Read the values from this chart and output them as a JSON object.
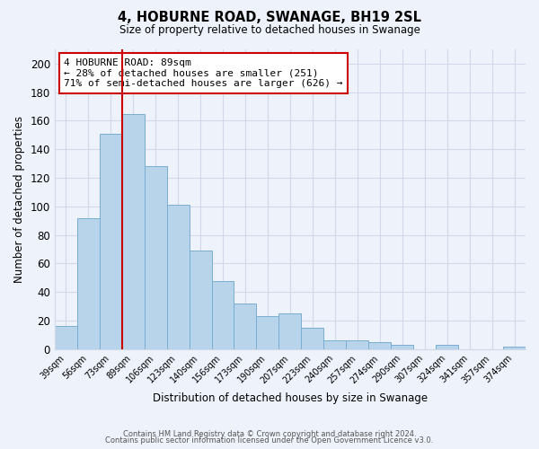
{
  "title": "4, HOBURNE ROAD, SWANAGE, BH19 2SL",
  "subtitle": "Size of property relative to detached houses in Swanage",
  "xlabel": "Distribution of detached houses by size in Swanage",
  "ylabel": "Number of detached properties",
  "categories": [
    "39sqm",
    "56sqm",
    "73sqm",
    "89sqm",
    "106sqm",
    "123sqm",
    "140sqm",
    "156sqm",
    "173sqm",
    "190sqm",
    "207sqm",
    "223sqm",
    "240sqm",
    "257sqm",
    "274sqm",
    "290sqm",
    "307sqm",
    "324sqm",
    "341sqm",
    "357sqm",
    "374sqm"
  ],
  "values": [
    16,
    92,
    151,
    165,
    128,
    101,
    69,
    48,
    32,
    23,
    25,
    15,
    6,
    6,
    5,
    3,
    0,
    3,
    0,
    0,
    2
  ],
  "bar_color": "#b8d4ea",
  "bar_edge_color": "#7aadd4",
  "vline_x_index": 3,
  "vline_color": "#cc0000",
  "annotation_text": "4 HOBURNE ROAD: 89sqm\n← 28% of detached houses are smaller (251)\n71% of semi-detached houses are larger (626) →",
  "annotation_box_color": "#ffffff",
  "annotation_box_edge_color": "#cc0000",
  "ylim": [
    0,
    210
  ],
  "yticks": [
    0,
    20,
    40,
    60,
    80,
    100,
    120,
    140,
    160,
    180,
    200
  ],
  "footer_line1": "Contains HM Land Registry data © Crown copyright and database right 2024.",
  "footer_line2": "Contains public sector information licensed under the Open Government Licence v3.0.",
  "background_color": "#eef2fa",
  "grid_color": "#d0d8ea"
}
